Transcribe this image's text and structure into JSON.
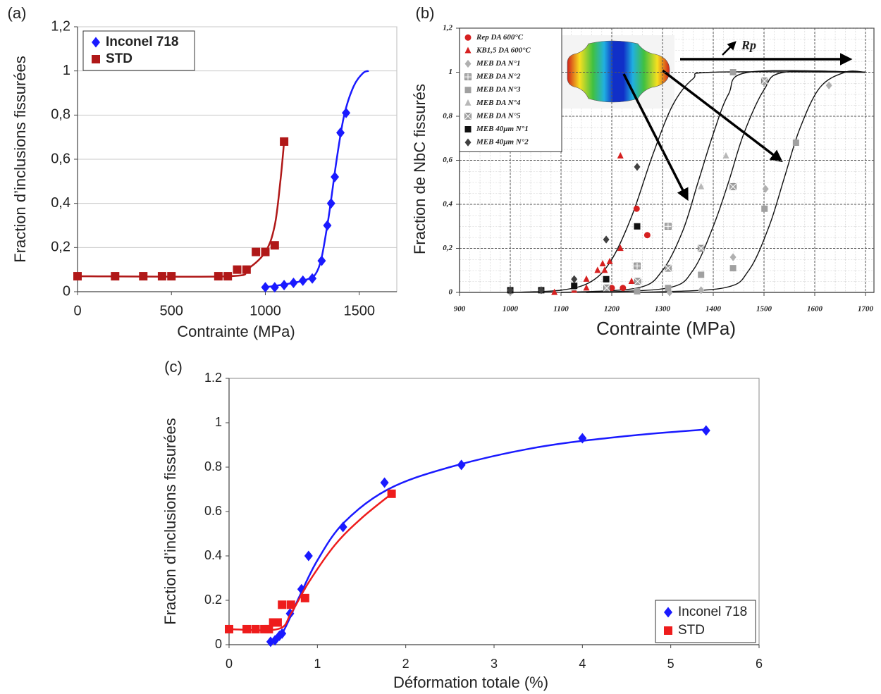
{
  "chart_data": [
    {
      "type": "scatter",
      "label": "(a)",
      "xlabel": "Contrainte (MPa)",
      "ylabel": "Fraction d’inclusions fissurées",
      "xlim": [
        0,
        1700
      ],
      "ylim": [
        0,
        1.2
      ],
      "xticks": [
        0,
        500,
        1000,
        1500
      ],
      "yticks": [
        0,
        {
          "value": 0.2,
          "label": "0,2"
        },
        {
          "value": 0.4,
          "label": "0,4"
        },
        {
          "value": 0.6,
          "label": "0,6"
        },
        {
          "value": 0.8,
          "label": "0,8"
        },
        1,
        {
          "value": 1.2,
          "label": "1,2"
        }
      ],
      "grid": true,
      "legend": "upper left",
      "series": [
        {
          "name": "Inconel 718",
          "color": "#1a1aff",
          "marker": "diamond",
          "x": [
            1000,
            1050,
            1100,
            1150,
            1200,
            1250,
            1300,
            1330,
            1350,
            1370,
            1400,
            1430
          ],
          "values": [
            0.02,
            0.02,
            0.03,
            0.04,
            0.05,
            0.06,
            0.14,
            0.3,
            0.4,
            0.52,
            0.72,
            0.81
          ],
          "curve": {
            "x": [
              1000,
              1200,
              1280,
              1330,
              1380,
              1420,
              1470,
              1520,
              1550
            ],
            "y": [
              0.02,
              0.05,
              0.1,
              0.3,
              0.6,
              0.8,
              0.93,
              0.99,
              1.0
            ]
          }
        },
        {
          "name": "STD",
          "color": "#b01818",
          "marker": "square",
          "x": [
            0,
            200,
            350,
            450,
            500,
            750,
            800,
            850,
            900,
            950,
            1000,
            1050,
            1100
          ],
          "values": [
            0.07,
            0.07,
            0.07,
            0.07,
            0.07,
            0.07,
            0.07,
            0.1,
            0.1,
            0.18,
            0.18,
            0.21,
            0.68
          ],
          "curve": {
            "x": [
              0,
              800,
              900,
              1000,
              1050,
              1080,
              1100
            ],
            "y": [
              0.07,
              0.07,
              0.1,
              0.18,
              0.3,
              0.5,
              0.68
            ]
          }
        }
      ]
    },
    {
      "type": "scatter",
      "label": "(b)",
      "xlabel": "Contrainte (MPa)",
      "ylabel": "Fraction de NbC fissurés",
      "annotation": "Rp",
      "xlim": [
        900,
        1700
      ],
      "ylim": [
        0,
        1.2
      ],
      "xticks": [
        900,
        1000,
        1100,
        1200,
        1300,
        1400,
        1500,
        1600,
        1700
      ],
      "yticks": [
        0,
        {
          "value": 0.2,
          "label": "0,2"
        },
        {
          "value": 0.4,
          "label": "0,4"
        },
        {
          "value": 0.6,
          "label": "0,6"
        },
        {
          "value": 0.8,
          "label": "0,8"
        },
        1,
        {
          "value": 1.2,
          "label": "1,2"
        }
      ],
      "grid": true,
      "legend": "upper left",
      "series": [
        {
          "name": "Rep DA 600°C",
          "color": "#d62020",
          "marker": "circle",
          "x": [
            1200,
            1222,
            1249,
            1270
          ],
          "values": [
            0.02,
            0.02,
            0.38,
            0.26
          ]
        },
        {
          "name": "KB1,5 DA 600°C",
          "color": "#d62020",
          "marker": "triangle",
          "x": [
            1087,
            1126,
            1150,
            1150,
            1172,
            1182,
            1186,
            1196,
            1217,
            1217,
            1239
          ],
          "values": [
            0,
            0.01,
            0.02,
            0.06,
            0.1,
            0.13,
            0.1,
            0.14,
            0.2,
            0.62,
            0.05
          ]
        },
        {
          "name": "MEB DA N°1",
          "color": "#b0b0b0",
          "marker": "diamond",
          "x": [
            1000,
            1314,
            1376,
            1439,
            1503,
            1628
          ],
          "values": [
            0,
            0,
            0.01,
            0.16,
            0.47,
            0.94
          ]
        },
        {
          "name": "MEB DA N°2",
          "color": "#a8a8a8",
          "marker": "square-plus",
          "x": [
            1190,
            1250,
            1311
          ],
          "values": [
            0.02,
            0.12,
            0.3
          ]
        },
        {
          "name": "MEB DA N°3",
          "color": "#a0a0a0",
          "marker": "square",
          "x": [
            1250,
            1311,
            1376,
            1439,
            1501,
            1563,
            1439
          ],
          "values": [
            0.005,
            0.02,
            0.08,
            0.11,
            0.38,
            0.68,
            1.0
          ]
        },
        {
          "name": "MEB DA N°4",
          "color": "#b8b8b8",
          "marker": "triangle",
          "x": [
            1125,
            1250,
            1376,
            1425
          ],
          "values": [
            0.02,
            0.05,
            0.48,
            0.62
          ]
        },
        {
          "name": "MEB DA N°5",
          "color": "#a0a0a0",
          "marker": "square-x",
          "x": [
            1190,
            1251,
            1311,
            1376,
            1439,
            1501
          ],
          "values": [
            0.02,
            0.05,
            0.11,
            0.2,
            0.48,
            0.96
          ]
        },
        {
          "name": "MEB 40µm N°1",
          "color": "#111111",
          "marker": "square",
          "x": [
            1000,
            1061,
            1126,
            1189,
            1250
          ],
          "values": [
            0.01,
            0.01,
            0.03,
            0.06,
            0.3
          ]
        },
        {
          "name": "MEB 40µm N°2",
          "color": "#404040",
          "marker": "diamond",
          "x": [
            1000,
            1061,
            1126,
            1189,
            1250
          ],
          "values": [
            0.01,
            0.01,
            0.06,
            0.24,
            0.57
          ]
        }
      ],
      "curves": [
        {
          "x": [
            1000,
            1100,
            1160,
            1200,
            1240,
            1280,
            1320,
            1360,
            1400,
            1700
          ],
          "y": [
            0,
            0.01,
            0.05,
            0.15,
            0.35,
            0.62,
            0.85,
            0.97,
            1.0,
            1.0
          ]
        },
        {
          "x": [
            1100,
            1250,
            1300,
            1340,
            1370,
            1400,
            1430,
            1470,
            1700
          ],
          "y": [
            0,
            0.02,
            0.1,
            0.28,
            0.5,
            0.72,
            0.9,
            1.0,
            1.0
          ]
        },
        {
          "x": [
            1150,
            1310,
            1360,
            1400,
            1430,
            1460,
            1500,
            1540,
            1700
          ],
          "y": [
            0,
            0.02,
            0.1,
            0.3,
            0.5,
            0.72,
            0.92,
            1.0,
            1.0
          ]
        },
        {
          "x": [
            1250,
            1420,
            1470,
            1510,
            1540,
            1570,
            1610,
            1660,
            1700
          ],
          "y": [
            0,
            0.02,
            0.1,
            0.3,
            0.52,
            0.74,
            0.93,
            1.0,
            1.0
          ]
        }
      ]
    },
    {
      "type": "scatter",
      "label": "(c)",
      "xlabel": "Déformation totale (%)",
      "ylabel": "Fraction d’inclusions fissurées",
      "xlim": [
        0,
        6
      ],
      "ylim": [
        0,
        1.2
      ],
      "xticks": [
        0,
        1,
        2,
        3,
        4,
        5,
        6
      ],
      "yticks": [
        0,
        0.2,
        0.4,
        0.6,
        0.8,
        1,
        1.2
      ],
      "grid": false,
      "legend": "lower right",
      "series": [
        {
          "name": "Inconel 718",
          "color": "#1a1aff",
          "marker": "diamond",
          "x": [
            0.47,
            0.52,
            0.57,
            0.6,
            0.69,
            0.82,
            0.9,
            1.29,
            1.76,
            2.63,
            4.0,
            5.4
          ],
          "values": [
            0.013,
            0.02,
            0.04,
            0.05,
            0.14,
            0.25,
            0.4,
            0.53,
            0.73,
            0.81,
            0.93,
            0.965
          ],
          "curve": {
            "x": [
              0.45,
              0.6,
              0.8,
              1.0,
              1.3,
              1.8,
              2.5,
              3.5,
              4.5,
              5.4
            ],
            "y": [
              0,
              0.05,
              0.22,
              0.38,
              0.55,
              0.7,
              0.8,
              0.89,
              0.94,
              0.97
            ]
          }
        },
        {
          "name": "STD",
          "color": "#ee1c1c",
          "marker": "square",
          "x": [
            0,
            0.2,
            0.3,
            0.4,
            0.45,
            0.5,
            0.55,
            0.6,
            0.7,
            0.86,
            1.84
          ],
          "values": [
            0.07,
            0.07,
            0.07,
            0.07,
            0.07,
            0.1,
            0.1,
            0.18,
            0.18,
            0.21,
            0.68
          ],
          "curve": {
            "x": [
              0,
              0.55,
              0.7,
              0.9,
              1.2,
              1.5,
              1.84
            ],
            "y": [
              0.07,
              0.07,
              0.14,
              0.28,
              0.45,
              0.57,
              0.68
            ]
          }
        }
      ]
    }
  ]
}
